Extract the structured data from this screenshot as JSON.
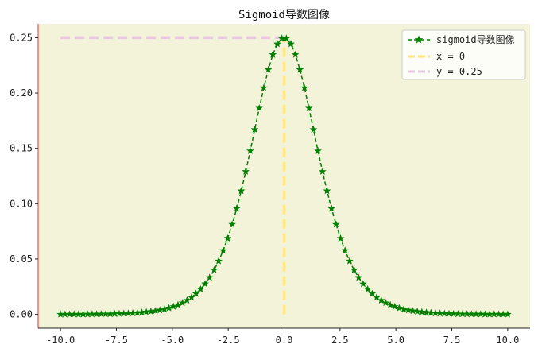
{
  "chart_data": {
    "type": "line",
    "title": "Sigmoid导数图像",
    "xlabel": "",
    "ylabel": "",
    "xlim": [
      -11.0,
      11.0
    ],
    "ylim": [
      -0.0125,
      0.2625
    ],
    "x_ticks": [
      -10.0,
      -7.5,
      -5.0,
      -2.5,
      0.0,
      2.5,
      5.0,
      7.5,
      10.0
    ],
    "x_tick_labels": [
      "-10.0",
      "-7.5",
      "-5.0",
      "-2.5",
      "0.0",
      "2.5",
      "5.0",
      "7.5",
      "10.0"
    ],
    "y_ticks": [
      0.0,
      0.05,
      0.1,
      0.15,
      0.2,
      0.25
    ],
    "y_tick_labels": [
      "0.00",
      "0.05",
      "0.10",
      "0.15",
      "0.20",
      "0.25"
    ],
    "grid": false,
    "legend_placement": "top-right",
    "background_color": "#f3f3d9",
    "series": [
      {
        "name": "sigmoid导数图像",
        "function": "sigmoid(x)*(1-sigmoid(x))",
        "x_start": -10.0,
        "x_end": 10.0,
        "num_points": 100,
        "color": "#008000",
        "line_style": "dashed",
        "marker": "star"
      },
      {
        "name": "x = 0",
        "x": [
          0.0,
          0.0
        ],
        "y": [
          0.0,
          0.25
        ],
        "color": "#ffe680",
        "line_style": "dashed"
      },
      {
        "name": "y = 0.25",
        "x": [
          -10.0,
          0.0
        ],
        "y": [
          0.25,
          0.25
        ],
        "color": "#e8c8e0",
        "line_style": "dashed"
      }
    ]
  }
}
